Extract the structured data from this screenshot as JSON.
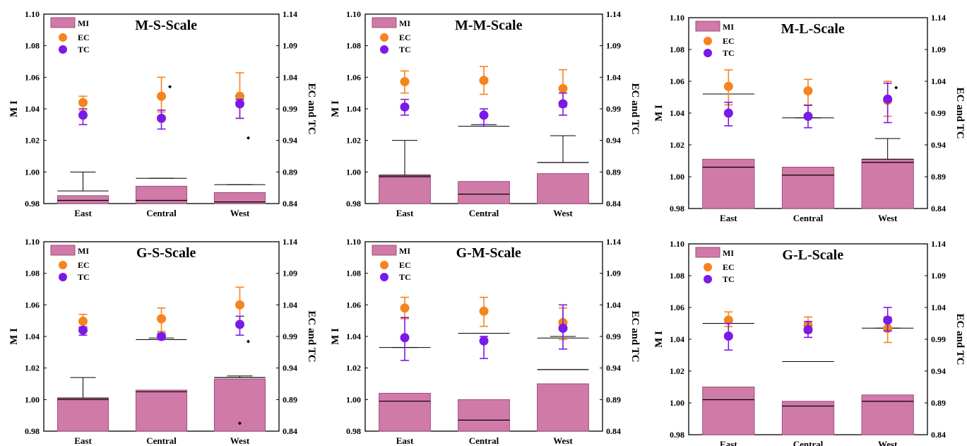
{
  "colors": {
    "mi_bar": "#d07aa8",
    "mi_border": "#9e4f7c",
    "ec": "#f5841f",
    "tc": "#7a1ae6",
    "axis": "#000000"
  },
  "chart_data": [
    {
      "type": "bar",
      "title": "M-S-Scale",
      "categories": [
        "East",
        "Central",
        "West"
      ],
      "ylabel": "M I",
      "ylim": [
        0.98,
        1.1
      ],
      "yticks": [
        "0.98",
        "1.00",
        "1.02",
        "1.04",
        "1.06",
        "1.08",
        "1.10"
      ],
      "y2label": "EC and TC",
      "y2lim": [
        0.84,
        1.14
      ],
      "y2ticks": [
        "0.84",
        "0.89",
        "0.94",
        "0.99",
        "1.04",
        "1.09",
        "1.14"
      ],
      "legend": [
        "MI",
        "EC",
        "TC"
      ],
      "mi": {
        "mean": [
          0.985,
          0.991,
          0.987
        ],
        "median": [
          0.982,
          0.982,
          0.981
        ],
        "lower": [
          0.982,
          0.982,
          0.981
        ],
        "upper": [
          0.988,
          0.996,
          0.992
        ],
        "max": [
          1.0,
          0.996,
          0.992
        ]
      },
      "ec": {
        "mean": [
          1.0,
          1.01,
          1.01
        ],
        "low": [
          0.987,
          0.985,
          0.975
        ],
        "high": [
          1.01,
          1.04,
          1.047
        ]
      },
      "tc": {
        "mean": [
          0.98,
          0.975,
          0.998
        ],
        "low": [
          0.965,
          0.958,
          0.975
        ],
        "high": [
          0.99,
          0.988,
          1.005
        ]
      },
      "outliers": [
        {
          "series": "ec",
          "cat": 1,
          "value": 1.025
        },
        {
          "series": "tc",
          "cat": 2,
          "value": 0.944
        }
      ]
    },
    {
      "type": "bar",
      "title": "M-M-Scale",
      "categories": [
        "East",
        "Central",
        "West"
      ],
      "ylabel": "M I",
      "ylim": [
        0.98,
        1.1
      ],
      "yticks": [
        "0.98",
        "1.00",
        "1.02",
        "1.04",
        "1.06",
        "1.08",
        "1.10"
      ],
      "y2label": "EC and TC",
      "y2lim": [
        0.84,
        1.14
      ],
      "y2ticks": [
        "0.84",
        "0.89",
        "0.94",
        "0.99",
        "1.04",
        "1.09",
        "1.14"
      ],
      "legend": [
        "MI",
        "EC",
        "TC"
      ],
      "mi": {
        "mean": [
          0.998,
          0.994,
          0.999
        ],
        "median": [
          0.997,
          0.986,
          1.006
        ],
        "lower": [
          0.997,
          0.986,
          0.999
        ],
        "upper": [
          0.998,
          1.029,
          1.006
        ],
        "max": [
          1.02,
          1.03,
          1.023
        ]
      },
      "ec": {
        "mean": [
          1.033,
          1.035,
          1.022
        ],
        "low": [
          1.015,
          1.013,
          0.993
        ],
        "high": [
          1.05,
          1.057,
          1.052
        ]
      },
      "tc": {
        "mean": [
          0.993,
          0.98,
          0.998
        ],
        "low": [
          0.98,
          0.965,
          0.98
        ],
        "high": [
          1.005,
          0.99,
          1.015
        ]
      },
      "outliers": []
    },
    {
      "type": "bar",
      "title": "M-L-Scale",
      "categories": [
        "East",
        "Central",
        "West"
      ],
      "ylabel": "M I",
      "ylim": [
        0.98,
        1.1
      ],
      "yticks": [
        "0.98",
        "1.00",
        "1.02",
        "1.04",
        "1.06",
        "1.08",
        "1.10"
      ],
      "y2label": "EC and TC",
      "y2lim": [
        0.84,
        1.14
      ],
      "y2ticks": [
        "0.84",
        "0.89",
        "0.94",
        "0.99",
        "1.04",
        "1.09",
        "1.14"
      ],
      "legend": [
        "MI",
        "EC",
        "TC"
      ],
      "mi": {
        "mean": [
          1.011,
          1.006,
          1.011
        ],
        "median": [
          1.006,
          1.001,
          1.009
        ],
        "lower": [
          1.006,
          1.001,
          1.009
        ],
        "upper": [
          1.052,
          1.037,
          1.011
        ],
        "max": [
          1.052,
          1.037,
          1.024
        ]
      },
      "ec": {
        "mean": [
          1.032,
          1.025,
          1.01
        ],
        "low": [
          1.003,
          1.003,
          0.985
        ],
        "high": [
          1.058,
          1.043,
          1.04
        ]
      },
      "tc": {
        "mean": [
          0.99,
          0.985,
          1.012
        ],
        "low": [
          0.97,
          0.967,
          0.975
        ],
        "high": [
          1.007,
          1.002,
          1.037
        ]
      },
      "outliers": [
        {
          "series": "ec",
          "cat": 2,
          "value": 1.03
        }
      ]
    },
    {
      "type": "bar",
      "title": "G-S-Scale",
      "categories": [
        "East",
        "Central",
        "West"
      ],
      "ylabel": "M I",
      "ylim": [
        0.98,
        1.1
      ],
      "yticks": [
        "0.98",
        "1.00",
        "1.02",
        "1.04",
        "1.06",
        "1.08",
        "1.10"
      ],
      "y2label": "EC and TC",
      "y2lim": [
        0.84,
        1.14
      ],
      "y2ticks": [
        "0.84",
        "0.89",
        "0.94",
        "0.99",
        "1.04",
        "1.09",
        "1.14"
      ],
      "legend": [
        "MI",
        "EC",
        "TC"
      ],
      "mi": {
        "mean": [
          1.001,
          1.006,
          1.013
        ],
        "median": [
          1.0,
          1.005,
          1.014
        ],
        "lower": [
          1.0,
          1.005,
          1.013
        ],
        "upper": [
          1.001,
          1.038,
          1.014
        ],
        "max": [
          1.014,
          1.039,
          1.015
        ]
      },
      "ec": {
        "mean": [
          1.014,
          1.018,
          1.04
        ],
        "low": [
          1.003,
          0.998,
          1.01
        ],
        "high": [
          1.025,
          1.035,
          1.068
        ]
      },
      "tc": {
        "mean": [
          1.0,
          0.99,
          1.009
        ],
        "low": [
          0.992,
          0.985,
          0.992
        ],
        "high": [
          1.005,
          0.995,
          1.022
        ]
      },
      "outliers": [
        {
          "series": "tc",
          "cat": 2,
          "value": 0.982
        },
        {
          "series": "mi",
          "cat": 2,
          "value": 0.985
        }
      ]
    },
    {
      "type": "bar",
      "title": "G-M-Scale",
      "categories": [
        "East",
        "Central",
        "West"
      ],
      "ylabel": "M I",
      "ylim": [
        0.98,
        1.1
      ],
      "yticks": [
        "0.98",
        "1.00",
        "1.02",
        "1.04",
        "1.06",
        "1.08",
        "1.10"
      ],
      "y2label": "EC and TC",
      "y2lim": [
        0.84,
        1.14
      ],
      "y2ticks": [
        "0.84",
        "0.89",
        "0.94",
        "0.99",
        "1.04",
        "1.09",
        "1.14"
      ],
      "legend": [
        "MI",
        "EC",
        "TC"
      ],
      "mi": {
        "mean": [
          1.004,
          1.0,
          1.01
        ],
        "median": [
          0.999,
          0.987,
          1.019
        ],
        "lower": [
          0.999,
          0.987,
          1.01
        ],
        "upper": [
          1.033,
          1.042,
          1.039
        ],
        "max": [
          1.033,
          1.042,
          1.04
        ]
      },
      "ec": {
        "mean": [
          1.035,
          1.03,
          1.012
        ],
        "low": [
          1.018,
          1.006,
          0.985
        ],
        "high": [
          1.052,
          1.052,
          1.035
        ]
      },
      "tc": {
        "mean": [
          0.988,
          0.983,
          1.003
        ],
        "low": [
          0.952,
          0.955,
          0.97
        ],
        "high": [
          1.02,
          0.99,
          1.04
        ]
      },
      "outliers": []
    },
    {
      "type": "bar",
      "title": "G-L-Scale",
      "categories": [
        "East",
        "Central",
        "West"
      ],
      "ylabel": "M I",
      "ylim": [
        0.98,
        1.1
      ],
      "yticks": [
        "0.98",
        "1.00",
        "1.02",
        "1.04",
        "1.06",
        "1.08",
        "1.10"
      ],
      "y2label": "EC and TC",
      "y2lim": [
        0.84,
        1.14
      ],
      "y2ticks": [
        "0.84",
        "0.89",
        "0.94",
        "0.99",
        "1.04",
        "1.09",
        "1.14"
      ],
      "legend": [
        "MI",
        "EC",
        "TC"
      ],
      "mi": {
        "mean": [
          1.01,
          1.001,
          1.005
        ],
        "median": [
          1.002,
          0.998,
          1.001
        ],
        "lower": [
          1.002,
          0.998,
          1.001
        ],
        "upper": [
          1.05,
          1.026,
          1.047
        ],
        "max": [
          1.05,
          1.026,
          1.047
        ]
      },
      "ec": {
        "mean": [
          1.02,
          1.012,
          1.007
        ],
        "low": [
          1.01,
          1.0,
          0.985
        ],
        "high": [
          1.033,
          1.025,
          1.025
        ]
      },
      "tc": {
        "mean": [
          0.995,
          1.005,
          1.02
        ],
        "low": [
          0.973,
          0.993,
          1.003
        ],
        "high": [
          1.015,
          1.018,
          1.04
        ]
      },
      "outliers": []
    }
  ]
}
